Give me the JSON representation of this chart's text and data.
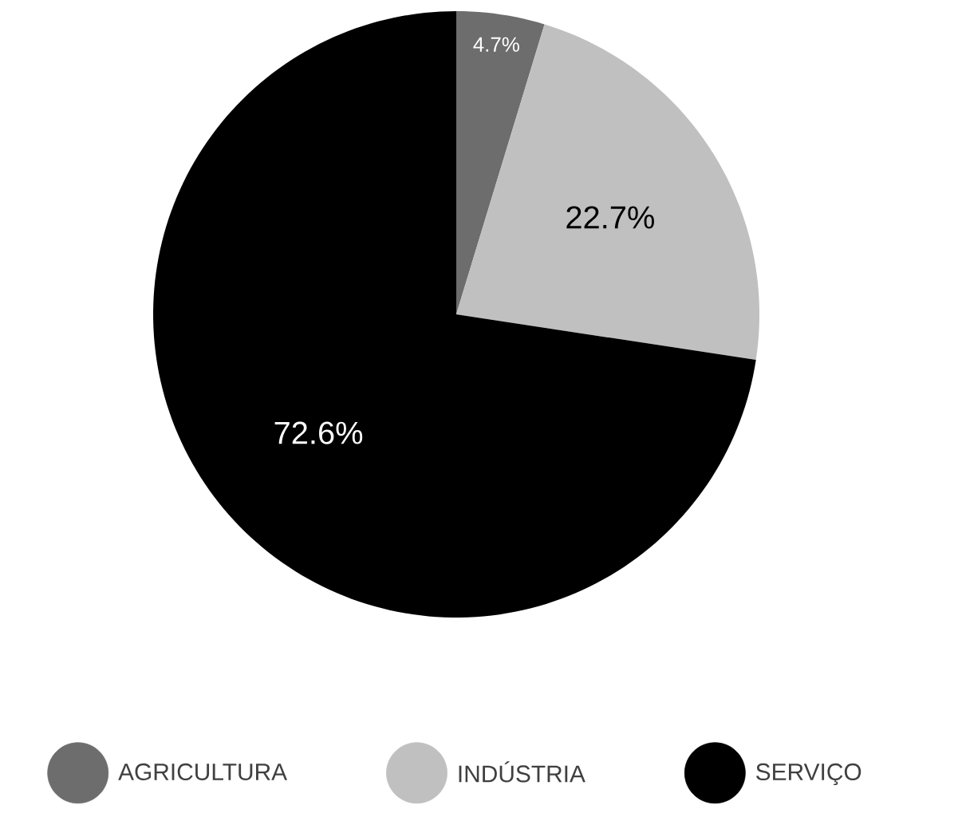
{
  "chart_data": {
    "type": "pie",
    "categories": [
      "AGRICULTURA",
      "INDÚSTRIA",
      "SERVIÇO"
    ],
    "values": [
      4.7,
      22.7,
      72.6
    ],
    "colors": [
      "#6d6d6d",
      "#c0c0c0",
      "#000000"
    ],
    "value_labels": [
      "4.7%",
      "22.7%",
      "72.6%"
    ],
    "legend": "bottom"
  }
}
